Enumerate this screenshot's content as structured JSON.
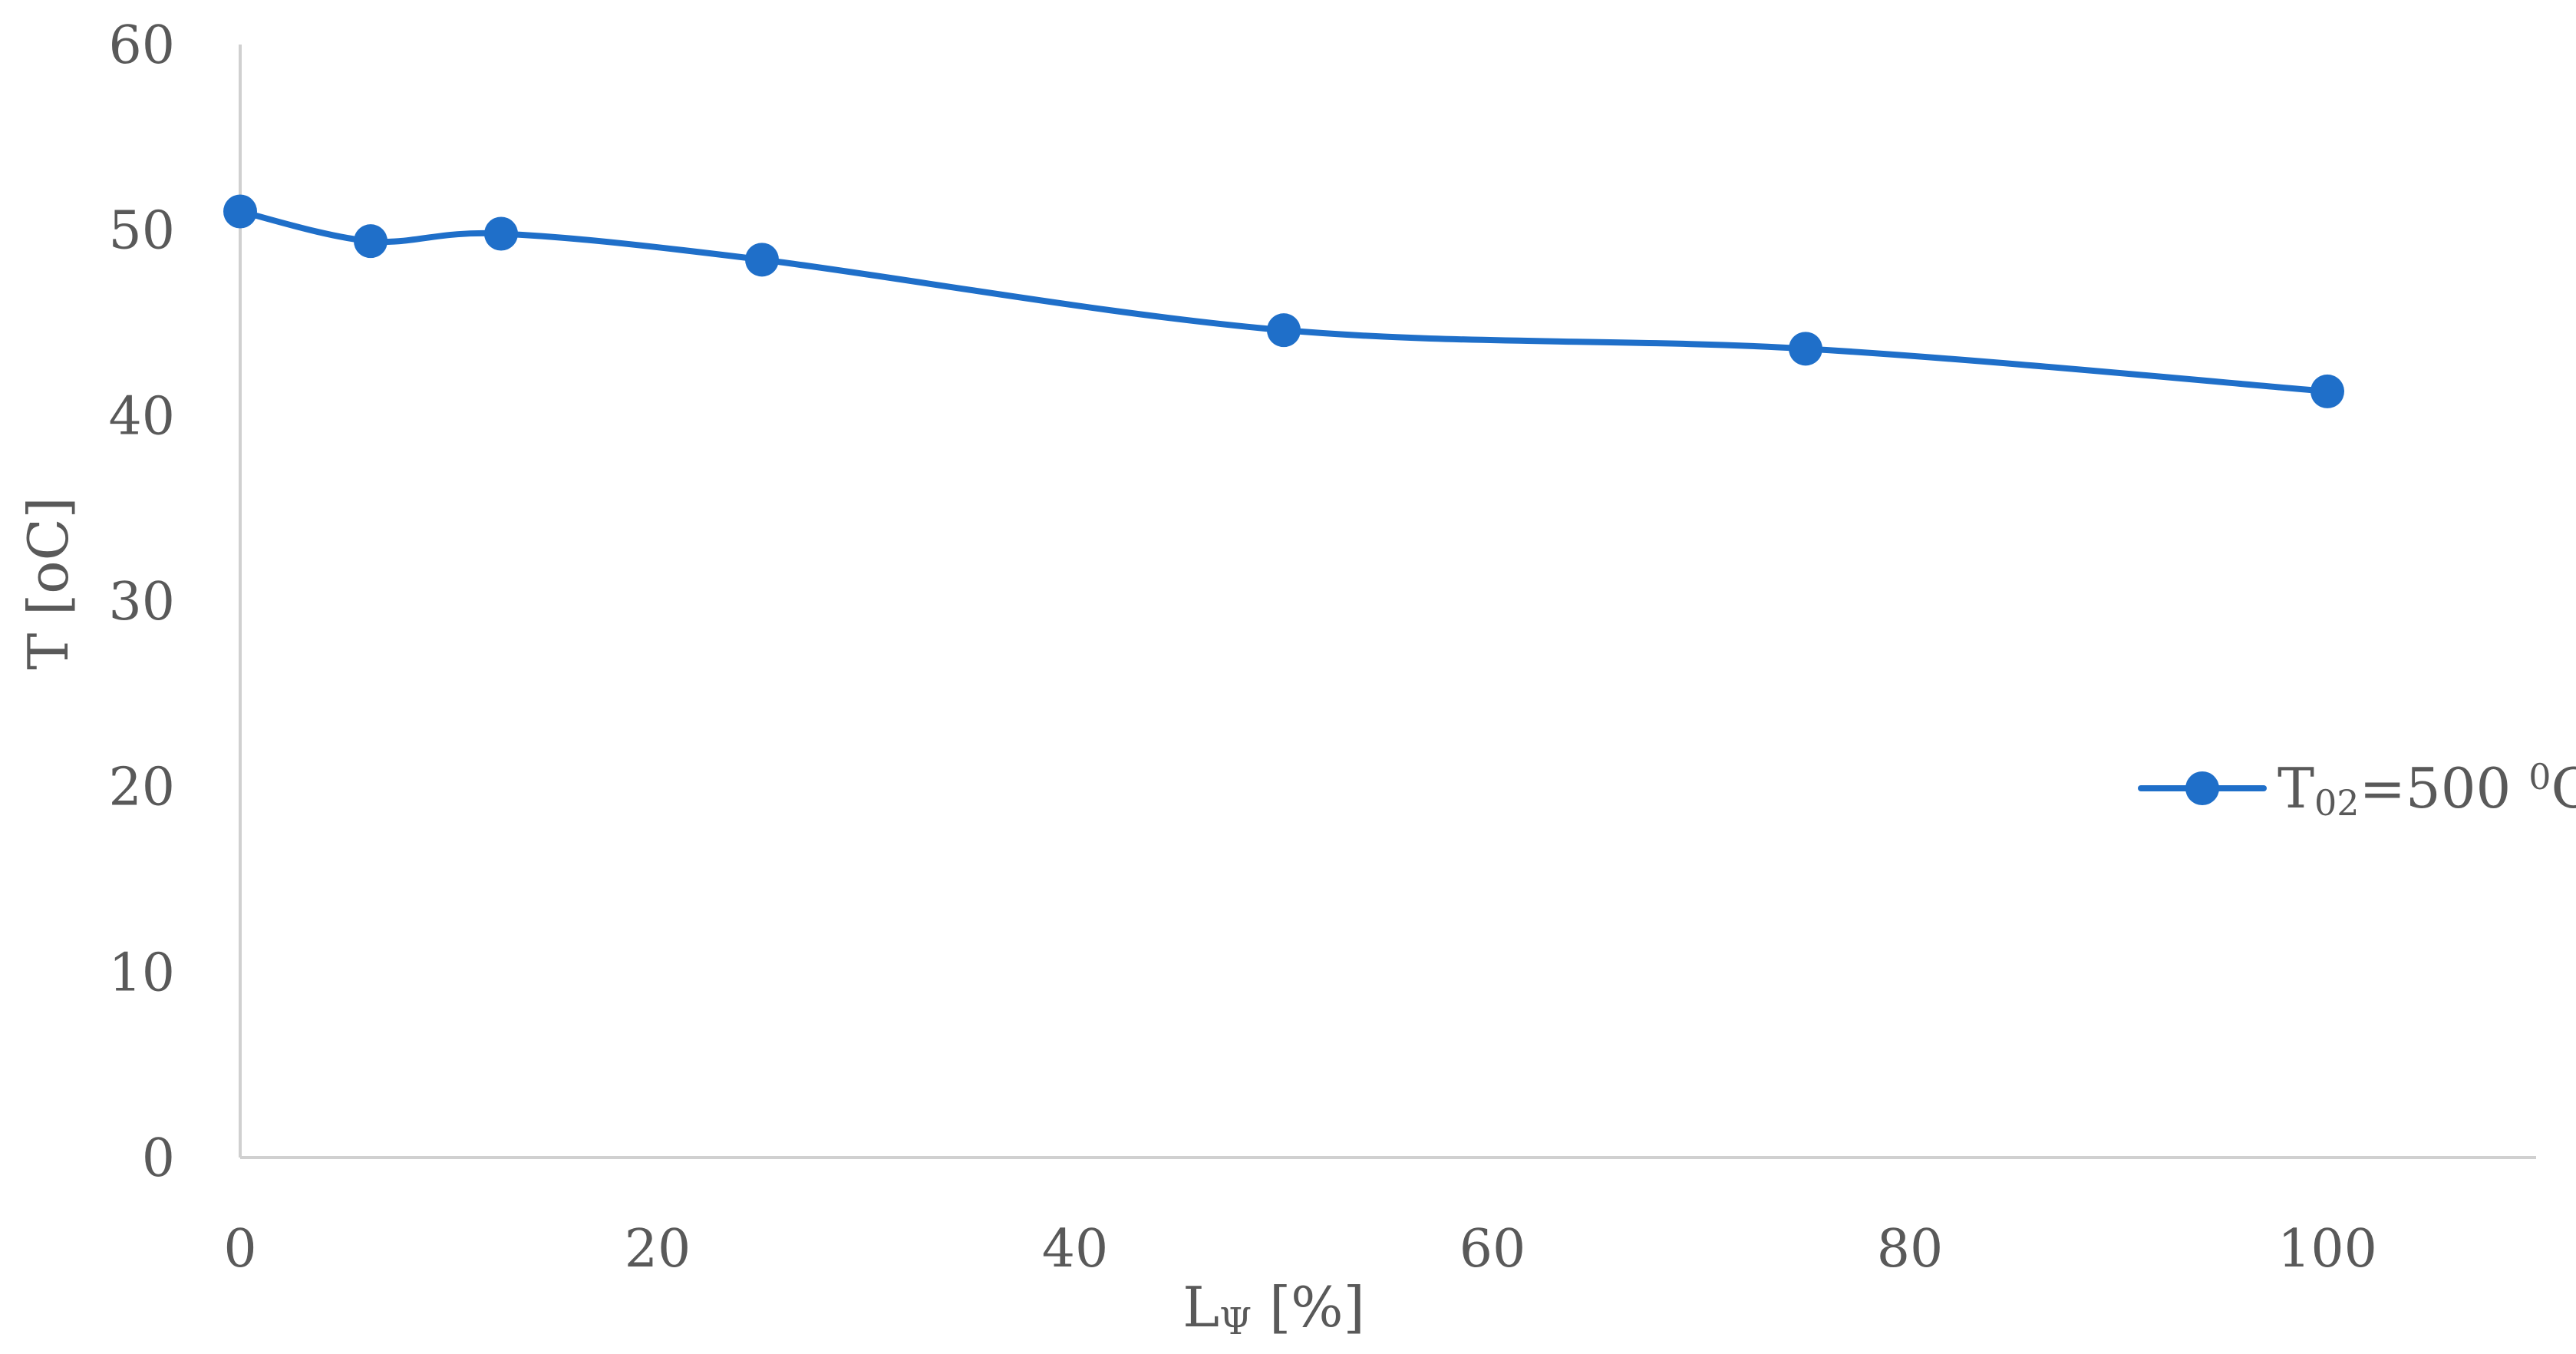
{
  "chart_data": {
    "type": "line",
    "smooth": true,
    "x": [
      0,
      6.25,
      12.5,
      25,
      50,
      75,
      100
    ],
    "series": [
      {
        "name_parts": {
          "main": "T",
          "sub": "02",
          "rest": "=500 ",
          "sup": "0",
          "unit": "C"
        },
        "values": [
          51.0,
          49.4,
          49.8,
          48.4,
          44.6,
          43.6,
          41.3
        ]
      }
    ],
    "xlim": [
      0,
      110
    ],
    "ylim": [
      0,
      60
    ],
    "x_ticks": [
      0,
      20,
      40,
      60,
      80,
      100
    ],
    "y_ticks": [
      0,
      10,
      20,
      30,
      40,
      50,
      60
    ],
    "xlabel_parts": {
      "main": "L",
      "sub": "Ψ",
      "rest": " [%]"
    },
    "ylabel": "T [oC]",
    "grid": false,
    "legend_position": "right",
    "colors": {
      "series": "#1f6fc9",
      "axis": "#d0d0d0",
      "text": "#595959"
    }
  }
}
